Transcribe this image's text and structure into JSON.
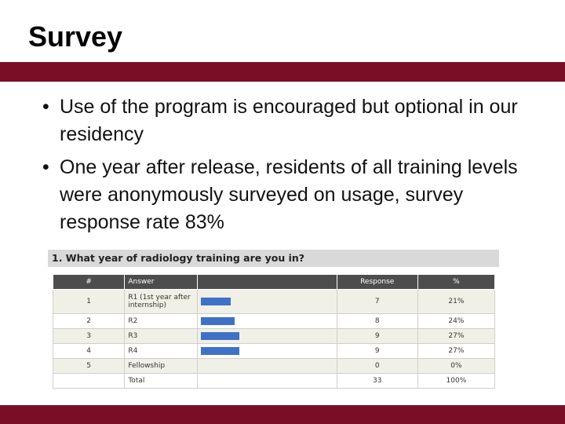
{
  "slide": {
    "title": "Survey",
    "bullets": [
      "Use of the program is encouraged but optional in our residency",
      "One year after release, residents of all training levels were anonymously surveyed on usage, survey response rate 83%"
    ]
  },
  "survey": {
    "question": "1.  What year of radiology training are you in?",
    "headers": {
      "num": "#",
      "answer": "Answer",
      "response": "Response",
      "pct": "%"
    },
    "rows": [
      {
        "num": "1",
        "answer": "R1 (1st year after internship)",
        "response": "7",
        "pct": "21%"
      },
      {
        "num": "2",
        "answer": "R2",
        "response": "8",
        "pct": "24%"
      },
      {
        "num": "3",
        "answer": "R3",
        "response": "9",
        "pct": "27%"
      },
      {
        "num": "4",
        "answer": "R4",
        "response": "9",
        "pct": "27%"
      },
      {
        "num": "5",
        "answer": "Fellowship",
        "response": "0",
        "pct": "0%"
      }
    ],
    "total": {
      "label": "Total",
      "response": "33",
      "pct": "100%"
    },
    "bar_fractions": [
      0.21,
      0.24,
      0.27,
      0.27,
      0.0
    ],
    "bar_color": "#3f72c6"
  },
  "colors": {
    "accent_bar": "#7a0e27",
    "table_header": "#4d4d4d"
  }
}
